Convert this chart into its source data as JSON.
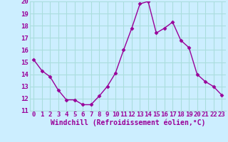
{
  "x": [
    0,
    1,
    2,
    3,
    4,
    5,
    6,
    7,
    8,
    9,
    10,
    11,
    12,
    13,
    14,
    15,
    16,
    17,
    18,
    19,
    20,
    21,
    22,
    23
  ],
  "y": [
    15.2,
    14.3,
    13.8,
    12.7,
    11.9,
    11.9,
    11.5,
    11.5,
    12.2,
    13.0,
    14.1,
    16.0,
    17.8,
    19.8,
    20.0,
    17.4,
    17.8,
    18.3,
    16.8,
    16.2,
    14.0,
    13.4,
    13.0,
    12.3
  ],
  "line_color": "#990099",
  "marker": "D",
  "markersize": 2.5,
  "linewidth": 1.0,
  "bg_color": "#cceeff",
  "grid_color": "#aadddd",
  "xlabel": "Windchill (Refroidissement éolien,°C)",
  "xlabel_color": "#990099",
  "xlabel_fontsize": 7,
  "tick_color": "#990099",
  "tick_fontsize": 6.5,
  "ylim": [
    11,
    20
  ],
  "xlim": [
    -0.5,
    23.5
  ],
  "yticks": [
    11,
    12,
    13,
    14,
    15,
    16,
    17,
    18,
    19,
    20
  ],
  "xticks": [
    0,
    1,
    2,
    3,
    4,
    5,
    6,
    7,
    8,
    9,
    10,
    11,
    12,
    13,
    14,
    15,
    16,
    17,
    18,
    19,
    20,
    21,
    22,
    23
  ]
}
